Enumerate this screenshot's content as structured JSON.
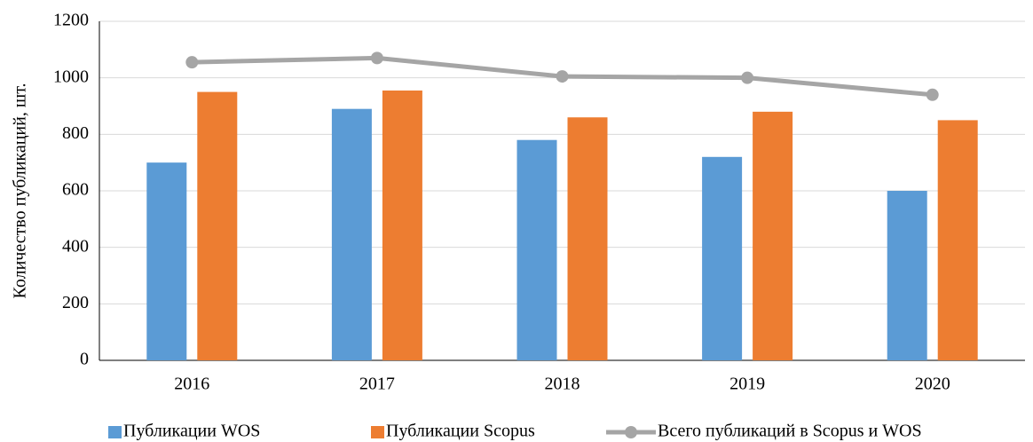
{
  "chart_data": {
    "type": "bar",
    "y_label": "Количество публикаций, шт.",
    "categories": [
      "2016",
      "2017",
      "2018",
      "2019",
      "2020"
    ],
    "series": [
      {
        "name": "Публикации WOS",
        "color": "#5b9bd5",
        "type": "bar",
        "values": [
          700,
          890,
          780,
          720,
          600
        ]
      },
      {
        "name": "Публикации Scopus",
        "color": "#ed7d31",
        "type": "bar",
        "values": [
          950,
          955,
          860,
          880,
          850
        ]
      },
      {
        "name": "Всего публикаций в Scopus и WOS",
        "color": "#a5a5a5",
        "type": "line",
        "values": [
          1055,
          1070,
          1005,
          1000,
          940
        ]
      }
    ],
    "ylim": [
      0,
      1200
    ],
    "yticks": [
      0,
      200,
      400,
      600,
      800,
      1000,
      1200
    ],
    "grid": true,
    "legend": "bottom"
  }
}
